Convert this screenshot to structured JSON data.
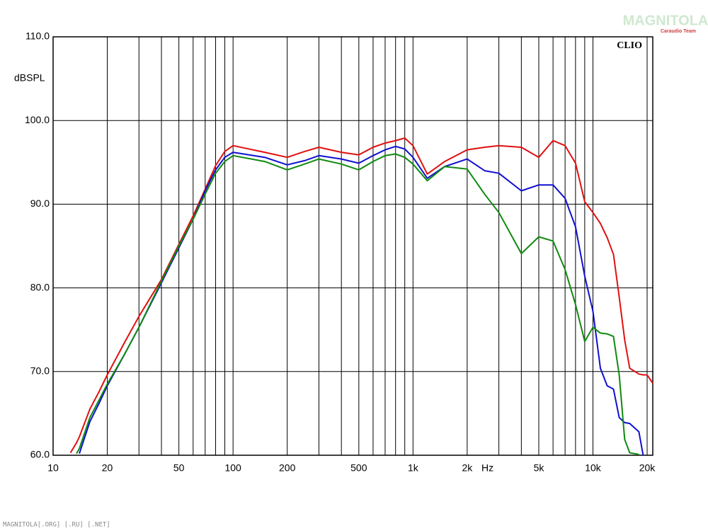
{
  "chart_data": {
    "type": "line",
    "ylabel": "dBSPL",
    "xlabel": "Hz",
    "brand": "CLIO",
    "watermark": "MAGNITOLA",
    "watermark_sub": "Caraudio Team",
    "footer": "MAGNITOLA[.ORG] [.RU] [.NET]",
    "xscale": "log",
    "grid": true,
    "xlim": [
      10,
      21500
    ],
    "ylim": [
      60,
      110
    ],
    "xticks": [
      10,
      20,
      50,
      100,
      200,
      500,
      {
        "value": 1000,
        "label": "1k"
      },
      {
        "value": 2000,
        "label": "2k"
      },
      {
        "value": 5000,
        "label": "5k"
      },
      {
        "value": 10000,
        "label": "10k"
      },
      {
        "value": 20000,
        "label": "20k"
      }
    ],
    "xminor": [
      30,
      40,
      60,
      70,
      80,
      90,
      300,
      400,
      600,
      700,
      800,
      900,
      3000,
      4000,
      6000,
      7000,
      8000,
      9000
    ],
    "yticks": [
      {
        "value": 60,
        "label": "60.0"
      },
      {
        "value": 70,
        "label": "70.0"
      },
      {
        "value": 80,
        "label": "80.0"
      },
      {
        "value": 90,
        "label": "90.0"
      },
      {
        "value": 100,
        "label": "100.0"
      },
      {
        "value": 110,
        "label": "110.0"
      }
    ],
    "x": [
      12.5,
      13.5,
      14,
      16,
      18,
      20,
      25,
      30,
      40,
      50,
      60,
      70,
      80,
      90,
      100,
      150,
      200,
      250,
      300,
      400,
      500,
      600,
      700,
      800,
      900,
      1000,
      1200,
      1500,
      2000,
      2500,
      3000,
      4000,
      5000,
      6000,
      7000,
      8000,
      9000,
      10000,
      11000,
      12000,
      13000,
      14000,
      15000,
      16000,
      18000,
      19000,
      20000,
      21500
    ],
    "series": [
      {
        "color": "#e01010",
        "values": [
          60.3,
          61.5,
          62.2,
          65.5,
          67.6,
          69.6,
          73.5,
          76.6,
          81.0,
          85.2,
          88.6,
          91.8,
          94.6,
          96.3,
          97.0,
          96.2,
          95.6,
          96.3,
          96.8,
          96.2,
          95.9,
          96.8,
          97.3,
          97.6,
          97.9,
          97.0,
          93.6,
          95.1,
          96.5,
          96.8,
          97.0,
          96.8,
          95.6,
          97.6,
          97.0,
          94.9,
          90.3,
          89.0,
          87.7,
          86.0,
          84.0,
          78.9,
          73.8,
          70.4,
          69.7,
          69.6,
          69.6,
          68.6
        ]
      },
      {
        "color": "#1010d0",
        "values": [
          null,
          null,
          60.2,
          64.0,
          66.2,
          68.3,
          72.1,
          75.3,
          80.6,
          84.8,
          88.2,
          91.6,
          94.1,
          95.6,
          96.2,
          95.6,
          94.7,
          95.2,
          95.8,
          95.4,
          94.9,
          95.8,
          96.5,
          96.9,
          96.6,
          95.6,
          93.1,
          94.5,
          95.4,
          94.0,
          93.7,
          91.6,
          92.3,
          92.3,
          90.7,
          87.3,
          81.4,
          77.2,
          70.4,
          68.3,
          67.9,
          64.5,
          63.9,
          63.8,
          62.8,
          60.0,
          null,
          null
        ]
      },
      {
        "color": "#108a10",
        "values": [
          null,
          60.2,
          60.8,
          64.5,
          66.6,
          68.5,
          72.1,
          75.3,
          80.8,
          85.0,
          88.2,
          91.2,
          93.7,
          95.1,
          95.8,
          95.1,
          94.1,
          94.8,
          95.4,
          94.8,
          94.1,
          95.1,
          95.8,
          96.0,
          95.6,
          94.8,
          92.8,
          94.5,
          94.2,
          91.2,
          89.0,
          84.1,
          86.1,
          85.6,
          82.2,
          78.0,
          73.6,
          75.3,
          74.6,
          74.5,
          74.2,
          69.6,
          61.9,
          60.3,
          60.1,
          null,
          null,
          null
        ]
      }
    ]
  }
}
